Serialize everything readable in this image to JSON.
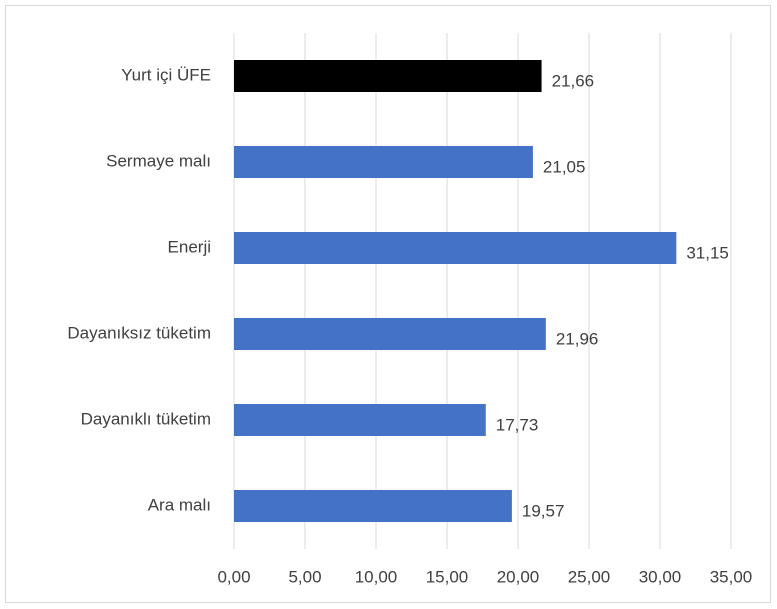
{
  "chart_data": {
    "type": "barh",
    "categories": [
      "Yurt içi ÜFE",
      "Sermaye malı",
      "Enerji",
      "Dayanıksız tüketim",
      "Dayanıklı tüketim",
      "Ara malı"
    ],
    "values": [
      21.66,
      21.05,
      31.15,
      21.96,
      17.73,
      19.57
    ],
    "value_labels": [
      "21,66",
      "21,05",
      "31,15",
      "21,96",
      "17,73",
      "19,57"
    ],
    "colors": [
      "#000000",
      "#4472c4",
      "#4472c4",
      "#4472c4",
      "#4472c4",
      "#4472c4"
    ],
    "xlim": [
      0,
      35
    ],
    "xticks": [
      {
        "value": 0,
        "label": "0,00"
      },
      {
        "value": 5,
        "label": "5,00"
      },
      {
        "value": 10,
        "label": "10,00"
      },
      {
        "value": 15,
        "label": "15,00"
      },
      {
        "value": 20,
        "label": "20,00"
      },
      {
        "value": 25,
        "label": "25,00"
      },
      {
        "value": 30,
        "label": "30,00"
      },
      {
        "value": 35,
        "label": "35,00"
      }
    ],
    "grid": true
  }
}
